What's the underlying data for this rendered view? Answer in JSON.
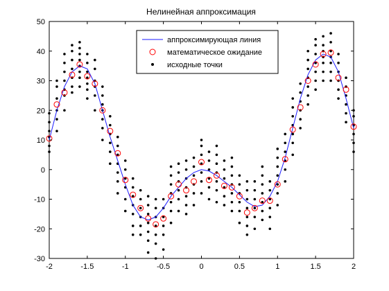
{
  "chart_data": {
    "type": "scatter",
    "title": "Нелинейная аппроксимация",
    "xlabel": "",
    "ylabel": "",
    "xlim": [
      -2,
      2
    ],
    "ylim": [
      -30,
      50
    ],
    "x_ticks": [
      -2,
      -1.5,
      -1,
      -0.5,
      0,
      0.5,
      1,
      1.5,
      2
    ],
    "y_ticks": [
      -30,
      -20,
      -10,
      0,
      10,
      20,
      30,
      40,
      50
    ],
    "x_tick_labels": [
      "-2",
      "-1.5",
      "-1",
      "-0.5",
      "0",
      "0.5",
      "1",
      "1.5",
      "2"
    ],
    "y_tick_labels": [
      "-30",
      "-20",
      "-10",
      "0",
      "10",
      "20",
      "30",
      "40",
      "50"
    ],
    "grid": false,
    "legend_position": "top-center",
    "series": [
      {
        "name": "аппроксимирующая линия",
        "kind": "line",
        "color": "#1a1aff",
        "x": [
          -2.0,
          -1.9,
          -1.8,
          -1.7,
          -1.6,
          -1.5,
          -1.4,
          -1.3,
          -1.2,
          -1.1,
          -1.0,
          -0.9,
          -0.8,
          -0.7,
          -0.6,
          -0.5,
          -0.4,
          -0.3,
          -0.2,
          -0.1,
          0.0,
          0.1,
          0.2,
          0.3,
          0.4,
          0.5,
          0.6,
          0.7,
          0.8,
          0.9,
          1.0,
          1.1,
          1.2,
          1.3,
          1.4,
          1.5,
          1.6,
          1.7,
          1.8,
          1.9,
          2.0
        ],
        "y": [
          10,
          20,
          28,
          33,
          35,
          34,
          29,
          20,
          11,
          3,
          -5,
          -12,
          -16,
          -17,
          -16,
          -13,
          -9,
          -6,
          -3,
          -1,
          0,
          -0.5,
          -2,
          -4,
          -6,
          -8.5,
          -11,
          -12.5,
          -12,
          -9,
          -4,
          4,
          14,
          24,
          32,
          37,
          39,
          38,
          33,
          24,
          14
        ]
      },
      {
        "name": "математическое ожидание",
        "kind": "marker",
        "marker": "circle",
        "color": "#ff0000",
        "x": [
          -2.0,
          -1.9,
          -1.8,
          -1.7,
          -1.6,
          -1.5,
          -1.4,
          -1.3,
          -1.2,
          -1.1,
          -1.0,
          -0.9,
          -0.8,
          -0.7,
          -0.6,
          -0.5,
          -0.4,
          -0.3,
          -0.2,
          -0.1,
          0.0,
          0.1,
          0.2,
          0.3,
          0.4,
          0.5,
          0.6,
          0.7,
          0.8,
          0.9,
          1.0,
          1.1,
          1.2,
          1.3,
          1.4,
          1.5,
          1.6,
          1.7,
          1.8,
          1.9,
          2.0
        ],
        "y": [
          10.5,
          22,
          26,
          32,
          35.5,
          31.5,
          29,
          20,
          13,
          5.5,
          -3.5,
          -8.5,
          -13,
          -16.5,
          -18.5,
          -16.5,
          -9,
          -5,
          -7,
          -4,
          2.5,
          -3.5,
          -2,
          -5.5,
          -6,
          -9,
          -14.5,
          -13,
          -10.5,
          -10.5,
          -5,
          3.5,
          13.5,
          21,
          30,
          35.5,
          39,
          39.5,
          31,
          27,
          14.5
        ]
      },
      {
        "name": "исходные точки",
        "kind": "marker",
        "marker": "dot",
        "color": "#000000",
        "x": [
          -2.0,
          -2.0,
          -2.0,
          -2.0,
          -2.0,
          -2.0,
          -1.9,
          -1.9,
          -1.9,
          -1.9,
          -1.9,
          -1.9,
          -1.8,
          -1.8,
          -1.8,
          -1.8,
          -1.8,
          -1.8,
          -1.8,
          -1.7,
          -1.7,
          -1.7,
          -1.7,
          -1.7,
          -1.7,
          -1.7,
          -1.6,
          -1.6,
          -1.6,
          -1.6,
          -1.6,
          -1.6,
          -1.6,
          -1.6,
          -1.5,
          -1.5,
          -1.5,
          -1.5,
          -1.5,
          -1.5,
          -1.5,
          -1.4,
          -1.4,
          -1.4,
          -1.4,
          -1.4,
          -1.4,
          -1.3,
          -1.3,
          -1.3,
          -1.3,
          -1.3,
          -1.3,
          -1.3,
          -1.2,
          -1.2,
          -1.2,
          -1.2,
          -1.2,
          -1.2,
          -1.1,
          -1.1,
          -1.1,
          -1.1,
          -1.1,
          -1.1,
          -1.1,
          -1.0,
          -1.0,
          -1.0,
          -1.0,
          -1.0,
          -1.0,
          -0.9,
          -0.9,
          -0.9,
          -0.9,
          -0.9,
          -0.9,
          -0.9,
          -0.8,
          -0.8,
          -0.8,
          -0.8,
          -0.8,
          -0.8,
          -0.7,
          -0.7,
          -0.7,
          -0.7,
          -0.7,
          -0.7,
          -0.7,
          -0.6,
          -0.6,
          -0.6,
          -0.6,
          -0.6,
          -0.6,
          -0.6,
          -0.5,
          -0.5,
          -0.5,
          -0.5,
          -0.5,
          -0.5,
          -0.4,
          -0.4,
          -0.4,
          -0.4,
          -0.4,
          -0.4,
          -0.4,
          -0.3,
          -0.3,
          -0.3,
          -0.3,
          -0.3,
          -0.3,
          -0.2,
          -0.2,
          -0.2,
          -0.2,
          -0.2,
          -0.2,
          -0.2,
          -0.1,
          -0.1,
          -0.1,
          -0.1,
          -0.1,
          -0.1,
          0.0,
          0.0,
          0.0,
          0.0,
          0.0,
          0.0,
          0.0,
          0.1,
          0.1,
          0.1,
          0.1,
          0.1,
          0.1,
          0.2,
          0.2,
          0.2,
          0.2,
          0.2,
          0.2,
          0.2,
          0.3,
          0.3,
          0.3,
          0.3,
          0.3,
          0.3,
          0.4,
          0.4,
          0.4,
          0.4,
          0.4,
          0.4,
          0.4,
          0.5,
          0.5,
          0.5,
          0.5,
          0.5,
          0.5,
          0.6,
          0.6,
          0.6,
          0.6,
          0.6,
          0.6,
          0.6,
          0.7,
          0.7,
          0.7,
          0.7,
          0.7,
          0.7,
          0.8,
          0.8,
          0.8,
          0.8,
          0.8,
          0.8,
          0.8,
          0.9,
          0.9,
          0.9,
          0.9,
          0.9,
          0.9,
          1.0,
          1.0,
          1.0,
          1.0,
          1.0,
          1.0,
          1.0,
          1.1,
          1.1,
          1.1,
          1.1,
          1.1,
          1.1,
          1.2,
          1.2,
          1.2,
          1.2,
          1.2,
          1.2,
          1.2,
          1.3,
          1.3,
          1.3,
          1.3,
          1.3,
          1.3,
          1.4,
          1.4,
          1.4,
          1.4,
          1.4,
          1.4,
          1.4,
          1.5,
          1.5,
          1.5,
          1.5,
          1.5,
          1.5,
          1.5,
          1.6,
          1.6,
          1.6,
          1.6,
          1.6,
          1.6,
          1.6,
          1.7,
          1.7,
          1.7,
          1.7,
          1.7,
          1.7,
          1.7,
          1.8,
          1.8,
          1.8,
          1.8,
          1.8,
          1.8,
          1.9,
          1.9,
          1.9,
          1.9,
          1.9,
          1.9,
          2.0,
          2.0,
          2.0,
          2.0,
          2.0,
          2.0
        ],
        "y": [
          6,
          8,
          11,
          13,
          16,
          19,
          13,
          17,
          20,
          24,
          28,
          30,
          20,
          25,
          27,
          30,
          33,
          36,
          39,
          26,
          28,
          31,
          34,
          37,
          40,
          42,
          28,
          31,
          33,
          35,
          37,
          39,
          41,
          43,
          24,
          27,
          29,
          31,
          33,
          36,
          39,
          20,
          25,
          28,
          30,
          34,
          37,
          10,
          14,
          17,
          20,
          22,
          25,
          28,
          2,
          6,
          9,
          12,
          15,
          18,
          -8,
          -4,
          -1,
          2,
          5,
          8,
          11,
          -14,
          -10,
          -6,
          -3,
          0,
          3,
          -22,
          -19,
          -15,
          -12,
          -9,
          -6,
          -3,
          -22,
          -19,
          -16,
          -13,
          -10,
          -7,
          -28,
          -24,
          -21,
          -18,
          -15,
          -12,
          -9,
          -30,
          -25,
          -22,
          -19,
          -16,
          -13,
          -10,
          -27,
          -22,
          -19,
          -16,
          -13,
          -10,
          -18,
          -14,
          -11,
          -8,
          -5,
          -2,
          1,
          -14,
          -10,
          -7,
          -4,
          -1,
          2,
          -15,
          -12,
          -9,
          -6,
          -3,
          0,
          3,
          -12,
          -8,
          -5,
          -2,
          1,
          4,
          -8,
          -4,
          -1,
          2,
          5,
          8,
          10,
          -10,
          -6,
          -3,
          0,
          3,
          6,
          -11,
          -7,
          -4,
          -1,
          2,
          5,
          8,
          -12,
          -9,
          -6,
          -3,
          0,
          3,
          -14,
          -11,
          -8,
          -5,
          -2,
          1,
          4,
          -18,
          -14,
          -11,
          -8,
          -5,
          -2,
          -22,
          -19,
          -16,
          -13,
          -10,
          -7,
          -4,
          -20,
          -16,
          -13,
          -10,
          -7,
          -4,
          -17,
          -14,
          -11,
          -8,
          -5,
          -2,
          1,
          -20,
          -16,
          -13,
          -10,
          -7,
          -4,
          -12,
          -8,
          -5,
          -2,
          1,
          4,
          7,
          -4,
          0,
          3,
          6,
          9,
          12,
          5,
          9,
          12,
          15,
          18,
          21,
          24,
          14,
          17,
          20,
          23,
          26,
          29,
          22,
          25,
          28,
          31,
          34,
          37,
          40,
          27,
          30,
          33,
          36,
          39,
          42,
          44,
          30,
          33,
          36,
          38,
          40,
          42,
          45,
          30,
          33,
          36,
          38,
          40,
          43,
          46,
          24,
          27,
          30,
          33,
          36,
          39,
          16,
          19,
          22,
          25,
          28,
          31,
          6,
          9,
          12,
          15,
          18,
          20
        ]
      }
    ]
  }
}
